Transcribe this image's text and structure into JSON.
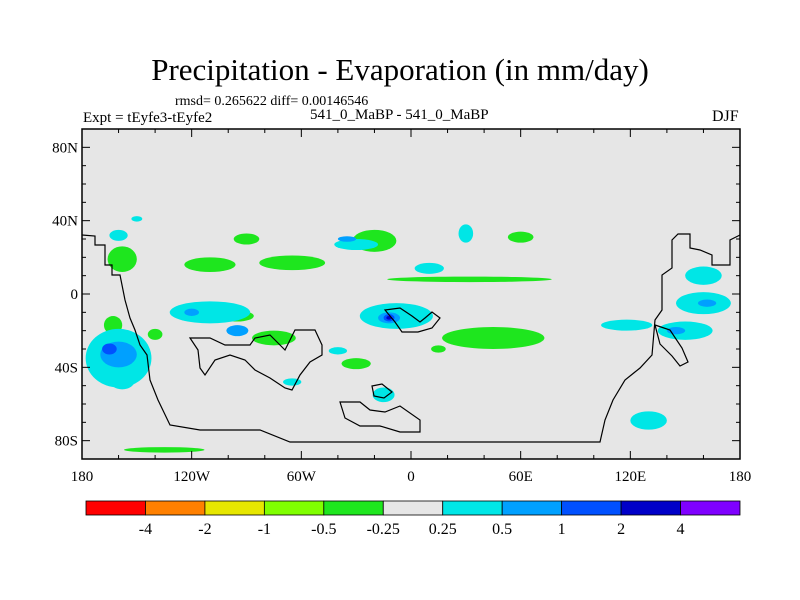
{
  "header": {
    "title": "Precipitation - Evaporation (in mm/day)",
    "stats": "rmsd= 0.265622 diff= 0.00146546",
    "experiment": "Expt = tEyfe3-tEyfe2",
    "case": "541_0_MaBP - 541_0_MaBP",
    "season": "DJF"
  },
  "chart_data": {
    "type": "heatmap",
    "title": "Precipitation - Evaporation (in mm/day)",
    "xlim": [
      -180,
      180
    ],
    "ylim": [
      -90,
      90
    ],
    "x_ticks": [
      {
        "value": -180,
        "label": "180"
      },
      {
        "value": -120,
        "label": "120W"
      },
      {
        "value": -60,
        "label": "60W"
      },
      {
        "value": 0,
        "label": "0"
      },
      {
        "value": 60,
        "label": "60E"
      },
      {
        "value": 120,
        "label": "120E"
      },
      {
        "value": 180,
        "label": "180"
      }
    ],
    "y_ticks": [
      {
        "value": 80,
        "label": "80N"
      },
      {
        "value": 40,
        "label": "40N"
      },
      {
        "value": 0,
        "label": "0"
      },
      {
        "value": -40,
        "label": "40S"
      },
      {
        "value": -80,
        "label": "80S"
      }
    ],
    "background_color": "#e6e6e6",
    "colorbar": {
      "colors": [
        "#ff0000",
        "#ff8000",
        "#e6e600",
        "#80ff00",
        "#1ee61e",
        "#e6e6e6",
        "#00e6e6",
        "#00a0ff",
        "#0050ff",
        "#0000c8",
        "#7f00ff"
      ],
      "labels": [
        "-4",
        "-2",
        "-1",
        "-0.5",
        "-0.25",
        "0.25",
        "0.5",
        "1",
        "2",
        "4"
      ]
    },
    "regions": [
      {
        "level": "-0.25",
        "color": "#1ee61e",
        "lon": -110,
        "lat": 16,
        "rx": 14,
        "ry": 4
      },
      {
        "level": "-0.25",
        "color": "#1ee61e",
        "lon": -65,
        "lat": 17,
        "rx": 18,
        "ry": 4
      },
      {
        "level": "-0.25",
        "color": "#1ee61e",
        "lon": -20,
        "lat": 29,
        "rx": 12,
        "ry": 6
      },
      {
        "level": "-0.25",
        "color": "#1ee61e",
        "lon": -90,
        "lat": 30,
        "rx": 7,
        "ry": 3
      },
      {
        "level": "-0.25",
        "color": "#1ee61e",
        "lon": -158,
        "lat": 19,
        "rx": 8,
        "ry": 7
      },
      {
        "level": "-0.25",
        "color": "#1ee61e",
        "lon": 60,
        "lat": 31,
        "rx": 7,
        "ry": 3
      },
      {
        "level": "-0.25",
        "color": "#1ee61e",
        "lon": 32,
        "lat": 8,
        "rx": 45,
        "ry": 1.5
      },
      {
        "level": "-0.25",
        "color": "#1ee61e",
        "lon": 45,
        "lat": -24,
        "rx": 28,
        "ry": 6
      },
      {
        "level": "-0.25",
        "color": "#1ee61e",
        "lon": -75,
        "lat": -24,
        "rx": 12,
        "ry": 4
      },
      {
        "level": "-0.25",
        "color": "#1ee61e",
        "lon": -95,
        "lat": -12,
        "rx": 9,
        "ry": 3
      },
      {
        "level": "-0.25",
        "color": "#1ee61e",
        "lon": -30,
        "lat": -38,
        "rx": 8,
        "ry": 3
      },
      {
        "level": "-0.25",
        "color": "#1ee61e",
        "lon": -163,
        "lat": -17,
        "rx": 5,
        "ry": 5
      },
      {
        "level": "-0.25",
        "color": "#1ee61e",
        "lon": -135,
        "lat": -85,
        "rx": 22,
        "ry": 1.5
      },
      {
        "level": "-0.25",
        "color": "#1ee61e",
        "lon": 15,
        "lat": -30,
        "rx": 4,
        "ry": 2
      },
      {
        "level": "-0.25",
        "color": "#1ee61e",
        "lon": -140,
        "lat": -22,
        "rx": 4,
        "ry": 3
      },
      {
        "level": "0.25",
        "color": "#00e6e6",
        "lon": -110,
        "lat": -10,
        "rx": 22,
        "ry": 6
      },
      {
        "level": "0.25",
        "color": "#00e6e6",
        "lon": -160,
        "lat": -35,
        "rx": 18,
        "ry": 16
      },
      {
        "level": "0.25",
        "color": "#00e6e6",
        "lon": -8,
        "lat": -12,
        "rx": 20,
        "ry": 7
      },
      {
        "level": "0.25",
        "color": "#00e6e6",
        "lon": 118,
        "lat": -17,
        "rx": 14,
        "ry": 3
      },
      {
        "level": "0.25",
        "color": "#00e6e6",
        "lon": 160,
        "lat": -5,
        "rx": 15,
        "ry": 6
      },
      {
        "level": "0.25",
        "color": "#00e6e6",
        "lon": 150,
        "lat": -20,
        "rx": 15,
        "ry": 5
      },
      {
        "level": "0.25",
        "color": "#00e6e6",
        "lon": 130,
        "lat": -69,
        "rx": 10,
        "ry": 5
      },
      {
        "level": "0.25",
        "color": "#00e6e6",
        "lon": -30,
        "lat": 27,
        "rx": 12,
        "ry": 3
      },
      {
        "level": "0.25",
        "color": "#00e6e6",
        "lon": 30,
        "lat": 33,
        "rx": 4,
        "ry": 5
      },
      {
        "level": "0.25",
        "color": "#00e6e6",
        "lon": 10,
        "lat": 14,
        "rx": 8,
        "ry": 3
      },
      {
        "level": "0.25",
        "color": "#00e6e6",
        "lon": 160,
        "lat": 10,
        "rx": 10,
        "ry": 5
      },
      {
        "level": "0.25",
        "color": "#00e6e6",
        "lon": -150,
        "lat": 41,
        "rx": 3,
        "ry": 1.5
      },
      {
        "level": "0.25",
        "color": "#00e6e6",
        "lon": -160,
        "lat": 32,
        "rx": 5,
        "ry": 3
      },
      {
        "level": "0.25",
        "color": "#00e6e6",
        "lon": -40,
        "lat": -31,
        "rx": 5,
        "ry": 2
      },
      {
        "level": "0.25",
        "color": "#00e6e6",
        "lon": -15,
        "lat": -55,
        "rx": 6,
        "ry": 4
      },
      {
        "level": "0.25",
        "color": "#00e6e6",
        "lon": -158,
        "lat": -47,
        "rx": 7,
        "ry": 5
      },
      {
        "level": "0.25",
        "color": "#00e6e6",
        "lon": -65,
        "lat": -48,
        "rx": 5,
        "ry": 2
      },
      {
        "level": "0.5",
        "color": "#00a0ff",
        "lon": -95,
        "lat": -20,
        "rx": 6,
        "ry": 3
      },
      {
        "level": "0.5",
        "color": "#00a0ff",
        "lon": -160,
        "lat": -33,
        "rx": 10,
        "ry": 7
      },
      {
        "level": "0.5",
        "color": "#00a0ff",
        "lon": -12,
        "lat": -13,
        "rx": 6,
        "ry": 3
      },
      {
        "level": "0.5",
        "color": "#00a0ff",
        "lon": 162,
        "lat": -5,
        "rx": 5,
        "ry": 2
      },
      {
        "level": "0.5",
        "color": "#00a0ff",
        "lon": 145,
        "lat": -20,
        "rx": 5,
        "ry": 2
      },
      {
        "level": "0.5",
        "color": "#00a0ff",
        "lon": -35,
        "lat": 30,
        "rx": 5,
        "ry": 1.5
      },
      {
        "level": "0.5",
        "color": "#00a0ff",
        "lon": -120,
        "lat": -10,
        "rx": 4,
        "ry": 2
      },
      {
        "level": "1",
        "color": "#0050ff",
        "lon": -165,
        "lat": -30,
        "rx": 4,
        "ry": 3
      },
      {
        "level": "1",
        "color": "#0050ff",
        "lon": -12,
        "lat": -13,
        "rx": 3,
        "ry": 2
      },
      {
        "level": "2",
        "color": "#0000c8",
        "lon": -12,
        "lat": -13,
        "rx": 1.5,
        "ry": 1
      }
    ]
  }
}
